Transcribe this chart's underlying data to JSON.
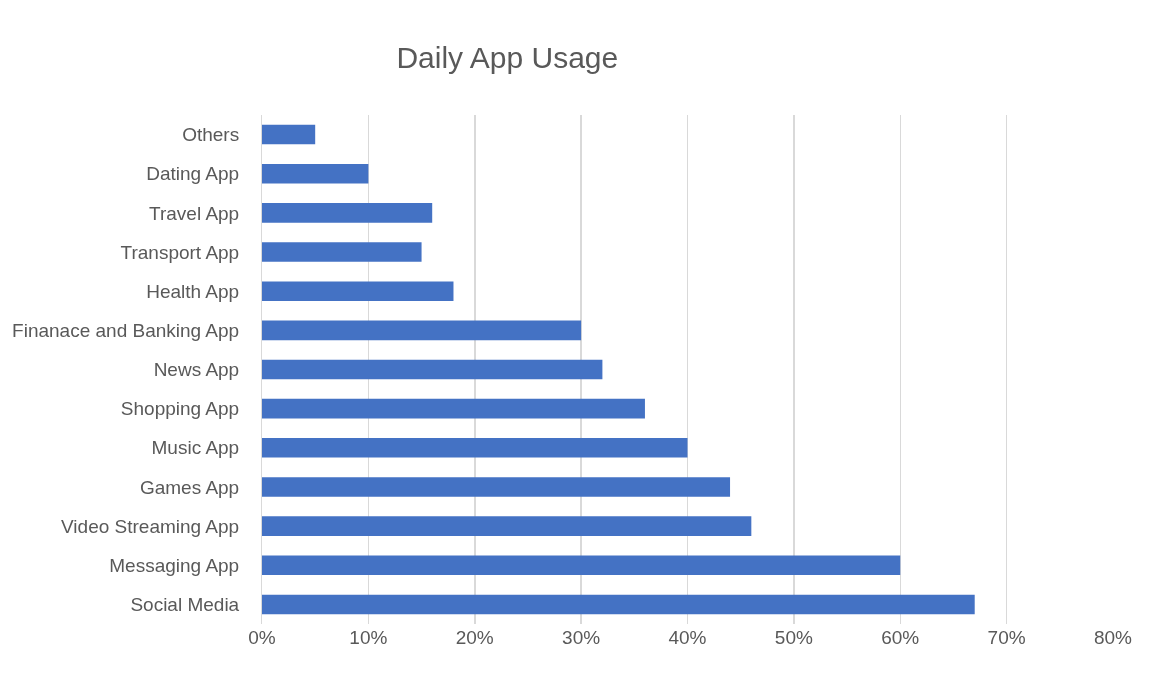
{
  "chart_data": {
    "type": "bar",
    "orientation": "horizontal",
    "title": "Daily App Usage",
    "categories": [
      "Others",
      "Dating App",
      "Travel App",
      "Transport App",
      "Health App",
      "Finanace and Banking App",
      "News App",
      "Shopping App",
      "Music App",
      "Games App",
      "Video Streaming App",
      "Messaging App",
      "Social Media"
    ],
    "values": [
      5,
      10,
      16,
      15,
      18,
      30,
      32,
      36,
      40,
      44,
      46,
      60,
      67
    ],
    "color": "#4472c4",
    "xlim": [
      0,
      80
    ],
    "xticks": [
      {
        "value": 0,
        "label": "0%"
      },
      {
        "value": 10,
        "label": "10%"
      },
      {
        "value": 20,
        "label": "20%"
      },
      {
        "value": 30,
        "label": "30%"
      },
      {
        "value": 40,
        "label": "40%"
      },
      {
        "value": 50,
        "label": "50%"
      },
      {
        "value": 60,
        "label": "60%"
      },
      {
        "value": 70,
        "label": "70%"
      },
      {
        "value": 80,
        "label": "80%"
      }
    ],
    "grid": "x",
    "legend": false
  }
}
